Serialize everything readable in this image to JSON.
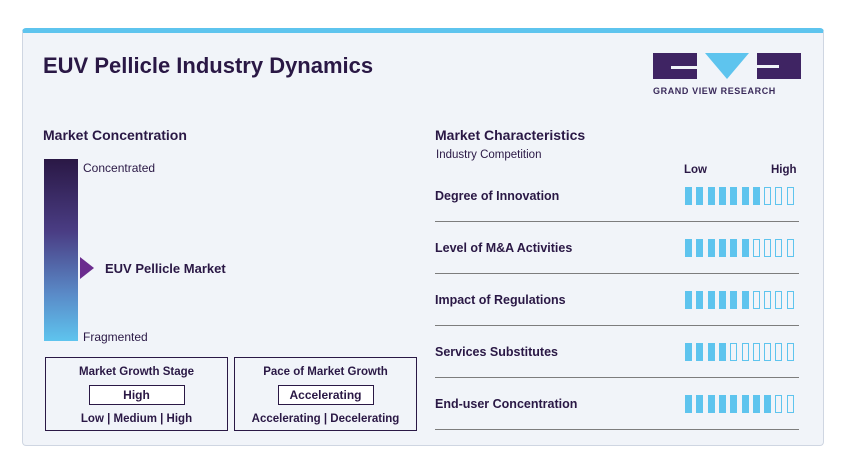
{
  "title": "EUV Pellicle Industry Dynamics",
  "logo": {
    "text": "GRAND VIEW RESEARCH"
  },
  "concentration": {
    "title": "Market Concentration",
    "top_label": "Concentrated",
    "bottom_label": "Fragmented",
    "marker_label": "EUV Pellicle Market",
    "marker_level": 0.5
  },
  "growth_stage": {
    "title": "Market Growth Stage",
    "value": "High",
    "options": "Low  |  Medium  |  High"
  },
  "growth_pace": {
    "title": "Pace of Market Growth",
    "value": "Accelerating",
    "options": "Accelerating  |  Decelerating"
  },
  "characteristics": {
    "title": "Market Characteristics",
    "subtitle": "Industry Competition",
    "low_label": "Low",
    "high_label": "High",
    "total_segments": 10,
    "rows": [
      {
        "label": "Degree of Innovation",
        "level": 7
      },
      {
        "label": "Level of M&A Activities",
        "level": 6
      },
      {
        "label": "Impact of Regulations",
        "level": 6
      },
      {
        "label": "Services Substitutes",
        "level": 4
      },
      {
        "label": "End-user Concentration",
        "level": 8
      }
    ]
  },
  "colors": {
    "dark": "#2a1845",
    "accent": "#5ec4ee",
    "pointer": "#6b2c8e"
  }
}
